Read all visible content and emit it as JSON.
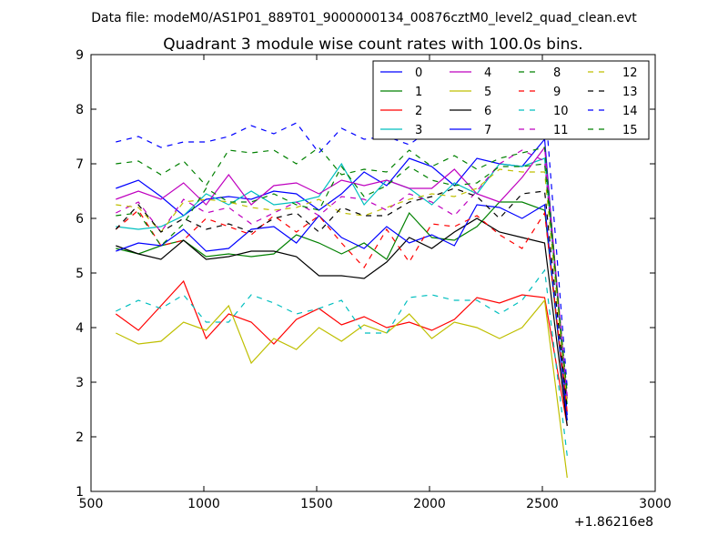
{
  "header": {
    "filename": "Data file: modeM0/AS1P01_889T01_9000000134_00876cztM0_level2_quad_clean.evt"
  },
  "chart_data": {
    "type": "line",
    "title": "Quadrant 3 module wise count rates with 100.0s bins.",
    "xlabel": "",
    "ylabel": "",
    "x_offset_label": "+1.86216e8",
    "xlim": [
      500,
      3000
    ],
    "ylim": [
      1,
      9
    ],
    "x_ticks": [
      500,
      1000,
      1500,
      2000,
      2500,
      3000
    ],
    "y_ticks": [
      1,
      2,
      3,
      4,
      5,
      6,
      7,
      8,
      9
    ],
    "legend_position": "top-right",
    "legend_columns": 4,
    "x": [
      610,
      710,
      810,
      910,
      1010,
      1110,
      1210,
      1310,
      1410,
      1510,
      1610,
      1710,
      1810,
      1910,
      2010,
      2110,
      2210,
      2310,
      2410,
      2510,
      2610
    ],
    "series": [
      {
        "name": "0",
        "color": "#0000ff",
        "dash": "solid",
        "values": [
          6.55,
          6.7,
          6.4,
          6.05,
          6.35,
          6.4,
          6.35,
          6.5,
          6.45,
          6.15,
          6.45,
          6.85,
          6.6,
          7.1,
          6.95,
          6.6,
          7.1,
          7.0,
          6.95,
          7.45,
          2.4
        ]
      },
      {
        "name": "1",
        "color": "#008000",
        "dash": "solid",
        "values": [
          5.45,
          5.35,
          5.5,
          5.6,
          5.3,
          5.35,
          5.3,
          5.35,
          5.7,
          5.55,
          5.35,
          5.55,
          5.25,
          6.1,
          5.65,
          5.6,
          5.85,
          6.3,
          6.3,
          6.15,
          2.3
        ]
      },
      {
        "name": "2",
        "color": "#ff0000",
        "dash": "solid",
        "values": [
          4.25,
          3.95,
          4.4,
          4.85,
          3.8,
          4.25,
          4.1,
          3.7,
          4.15,
          4.35,
          4.05,
          4.2,
          4.0,
          4.1,
          3.95,
          4.15,
          4.55,
          4.45,
          4.6,
          4.55,
          2.2
        ]
      },
      {
        "name": "3",
        "color": "#00bfbf",
        "dash": "solid",
        "values": [
          5.85,
          5.8,
          5.85,
          6.05,
          6.45,
          6.25,
          6.5,
          6.25,
          6.3,
          6.4,
          7.0,
          6.25,
          6.7,
          6.55,
          6.25,
          6.65,
          6.45,
          7.0,
          6.95,
          7.1,
          2.6
        ]
      },
      {
        "name": "4",
        "color": "#bf00bf",
        "dash": "solid",
        "values": [
          6.35,
          6.5,
          6.35,
          6.65,
          6.25,
          6.8,
          6.25,
          6.6,
          6.65,
          6.45,
          6.7,
          6.6,
          6.7,
          6.55,
          6.55,
          6.9,
          6.45,
          6.3,
          6.75,
          7.3,
          2.7
        ]
      },
      {
        "name": "5",
        "color": "#bfbf00",
        "dash": "solid",
        "values": [
          3.9,
          3.7,
          3.75,
          4.1,
          3.95,
          4.4,
          3.35,
          3.8,
          3.6,
          4.0,
          3.75,
          4.05,
          3.9,
          4.25,
          3.8,
          4.1,
          4.0,
          3.8,
          4.0,
          4.5,
          1.25
        ]
      },
      {
        "name": "6",
        "color": "#000000",
        "dash": "solid",
        "values": [
          5.5,
          5.35,
          5.25,
          5.6,
          5.25,
          5.3,
          5.4,
          5.4,
          5.3,
          4.95,
          4.95,
          4.9,
          5.2,
          5.65,
          5.45,
          5.75,
          6.0,
          5.75,
          5.65,
          5.55,
          2.2
        ]
      },
      {
        "name": "7",
        "color": "#0000ff",
        "dash": "solid",
        "values": [
          5.4,
          5.55,
          5.5,
          5.8,
          5.4,
          5.45,
          5.8,
          5.85,
          5.55,
          6.05,
          5.65,
          5.45,
          5.85,
          5.55,
          5.7,
          5.5,
          6.25,
          6.2,
          6.0,
          6.25,
          2.3
        ]
      },
      {
        "name": "8",
        "color": "#008000",
        "dash": "dashed",
        "values": [
          7.0,
          7.05,
          6.8,
          7.05,
          6.6,
          7.25,
          7.2,
          7.25,
          7.0,
          7.3,
          6.8,
          6.9,
          6.85,
          7.25,
          6.95,
          7.15,
          6.9,
          7.1,
          7.2,
          7.3,
          2.55
        ]
      },
      {
        "name": "9",
        "color": "#ff0000",
        "dash": "dashed",
        "values": [
          5.8,
          6.15,
          5.5,
          5.6,
          6.0,
          5.85,
          5.7,
          6.05,
          5.75,
          6.05,
          5.55,
          5.1,
          5.8,
          5.2,
          5.9,
          5.85,
          6.05,
          5.7,
          5.45,
          6.1,
          2.45
        ]
      },
      {
        "name": "10",
        "color": "#00bfbf",
        "dash": "dashed",
        "values": [
          4.3,
          4.5,
          4.35,
          4.6,
          4.1,
          4.1,
          4.6,
          4.45,
          4.25,
          4.35,
          4.5,
          3.9,
          3.9,
          4.55,
          4.6,
          4.5,
          4.5,
          4.25,
          4.5,
          5.05,
          1.65
        ]
      },
      {
        "name": "11",
        "color": "#bf00bf",
        "dash": "dashed",
        "values": [
          6.1,
          6.3,
          5.75,
          6.35,
          6.1,
          6.2,
          5.9,
          6.1,
          6.3,
          6.05,
          6.4,
          6.35,
          6.15,
          6.45,
          6.3,
          6.05,
          6.5,
          7.0,
          7.25,
          7.05,
          2.75
        ]
      },
      {
        "name": "12",
        "color": "#bfbf00",
        "dash": "dashed",
        "values": [
          6.25,
          6.2,
          5.75,
          6.3,
          6.35,
          6.3,
          6.2,
          6.15,
          6.2,
          6.35,
          6.1,
          6.05,
          6.2,
          6.35,
          6.45,
          6.4,
          6.55,
          6.9,
          6.85,
          6.85,
          2.6
        ]
      },
      {
        "name": "13",
        "color": "#000000",
        "dash": "dashed",
        "values": [
          5.8,
          6.25,
          5.75,
          6.0,
          5.8,
          5.9,
          5.75,
          6.0,
          6.1,
          5.75,
          6.2,
          6.05,
          6.05,
          6.3,
          6.4,
          6.55,
          6.4,
          6.0,
          6.45,
          6.5,
          2.5
        ]
      },
      {
        "name": "14",
        "color": "#0000ff",
        "dash": "dashed",
        "values": [
          7.4,
          7.5,
          7.3,
          7.4,
          7.4,
          7.5,
          7.7,
          7.55,
          7.75,
          7.2,
          7.65,
          7.45,
          7.5,
          7.35,
          7.65,
          7.8,
          7.6,
          8.2,
          7.95,
          8.2,
          2.9
        ]
      },
      {
        "name": "15",
        "color": "#008000",
        "dash": "dashed",
        "values": [
          6.05,
          6.1,
          5.5,
          5.9,
          6.55,
          6.3,
          6.3,
          6.45,
          6.25,
          6.15,
          6.95,
          6.4,
          6.6,
          6.95,
          6.7,
          6.6,
          6.65,
          6.95,
          6.95,
          7.0,
          2.8
        ]
      }
    ]
  }
}
